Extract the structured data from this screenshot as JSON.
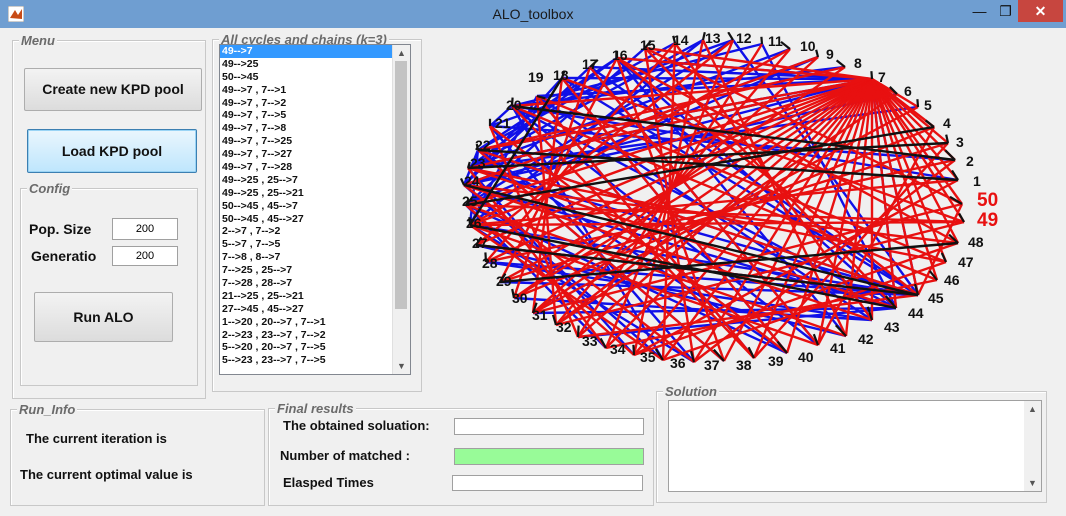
{
  "window": {
    "title": "ALO_toolbox",
    "close_glyph": "✕",
    "min_glyph": "—",
    "max_glyph": "❐"
  },
  "menu": {
    "label": "Menu",
    "create_btn": "Create new KPD pool",
    "load_btn": "Load KPD pool"
  },
  "config": {
    "label": "Config",
    "pop_label": "Pop. Size",
    "pop_value": "200",
    "gen_label": "Generatio",
    "gen_value": "200",
    "run_btn": "Run ALO"
  },
  "cycles": {
    "label": "All cycles and chains (k=3)",
    "items": [
      "49-->7",
      "49-->25",
      "50-->45",
      "49-->7  ,  7-->1",
      "49-->7  ,  7-->2",
      "49-->7  ,  7-->5",
      "49-->7  ,  7-->8",
      "49-->7  ,  7-->25",
      "49-->7  ,  7-->27",
      "49-->7  ,  7-->28",
      "49-->25  ,  25-->7",
      "49-->25  ,  25-->21",
      "50-->45  ,  45-->7",
      "50-->45  ,  45-->27",
      "2-->7  ,  7-->2",
      "5-->7  ,  7-->5",
      "7-->8  ,  8-->7",
      "7-->25  ,  25-->7",
      "7-->28  ,  28-->7",
      "21-->25  ,  25-->21",
      "27-->45  ,  45-->27",
      "1-->20  ,  20-->7  ,  7-->1",
      "2-->23  ,  23-->7  ,  7-->2",
      "5-->20  ,  20-->7  ,  7-->5",
      "5-->23  ,  23-->7  ,  7-->5"
    ]
  },
  "run_info": {
    "label": "Run_Info",
    "iteration": "The current iteration is",
    "optimal": "The current optimal value is"
  },
  "final": {
    "label": "Final results",
    "solution": "The obtained soluation:",
    "matched": "Number of matched :",
    "elapsed": "Elasped Times"
  },
  "solution_panel": {
    "label": "Solution"
  },
  "colors": {
    "edge_blue": "#1010e8",
    "edge_red": "#e81010",
    "edge_black": "#111111",
    "matched_field": "#98fb98",
    "close_btn": "#c7463f",
    "title_bar": "#6f9ed1"
  },
  "graph_labels": [
    "1",
    "2",
    "3",
    "4",
    "5",
    "6",
    "7",
    "8",
    "9",
    "10",
    "11",
    "12",
    "13",
    "14",
    "15",
    "16",
    "17",
    "18",
    "19",
    "20",
    "21",
    "22",
    "23",
    "24",
    "25",
    "26",
    "27",
    "28",
    "29",
    "30",
    "31",
    "32",
    "33",
    "34",
    "35",
    "36",
    "37",
    "38",
    "39",
    "40",
    "41",
    "42",
    "43",
    "44",
    "45",
    "46",
    "47",
    "48",
    "49",
    "50"
  ]
}
